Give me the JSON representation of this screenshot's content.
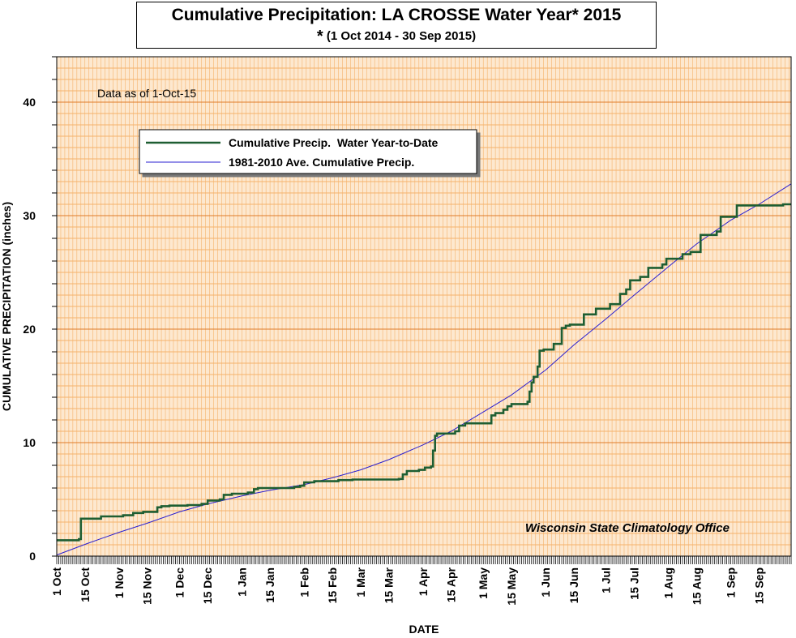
{
  "title": "Cumulative Precipitation: LA CROSSE Water Year* 2015",
  "subtitle_star": "*",
  "subtitle": "(1 Oct 2014 - 30 Sep 2015)",
  "note": "Data as of 1-Oct-15",
  "credit": "Wisconsin State Climatology Office",
  "colors": {
    "observed": "#1e5e32",
    "average": "#2a1fd0",
    "grid_major": "#e07b2a",
    "grid_minor": "#f5b26b",
    "plot_bg": "#fde8cf"
  },
  "chart_data": {
    "type": "line",
    "xlabel": "DATE",
    "ylabel": "CUMULATIVE PRECIPITATION (inches)",
    "ylim": [
      0,
      44
    ],
    "yticks": [
      0,
      10,
      20,
      30,
      40
    ],
    "xlim_days": [
      0,
      365
    ],
    "grid": true,
    "legend_position": "top-left",
    "xtick_labels": [
      {
        "label": "1 Oct",
        "day": 0
      },
      {
        "label": "15 Oct",
        "day": 14
      },
      {
        "label": "1 Nov",
        "day": 31
      },
      {
        "label": "15 Nov",
        "day": 45
      },
      {
        "label": "1 Dec",
        "day": 61
      },
      {
        "label": "15 Dec",
        "day": 75
      },
      {
        "label": "1 Jan",
        "day": 92
      },
      {
        "label": "15 Jan",
        "day": 106
      },
      {
        "label": "1 Feb",
        "day": 123
      },
      {
        "label": "15 Feb",
        "day": 137
      },
      {
        "label": "1 Mar",
        "day": 151
      },
      {
        "label": "15 Mar",
        "day": 165
      },
      {
        "label": "1 Apr",
        "day": 182
      },
      {
        "label": "15 Apr",
        "day": 196
      },
      {
        "label": "1 May",
        "day": 212
      },
      {
        "label": "15 May",
        "day": 226
      },
      {
        "label": "1 Jun",
        "day": 243
      },
      {
        "label": "15 Jun",
        "day": 257
      },
      {
        "label": "1 Jul",
        "day": 273
      },
      {
        "label": "15 Jul",
        "day": 287
      },
      {
        "label": "1 Aug",
        "day": 304
      },
      {
        "label": "15 Aug",
        "day": 318
      },
      {
        "label": "1 Sep",
        "day": 335
      },
      {
        "label": "15 Sep",
        "day": 349
      }
    ],
    "series": [
      {
        "name": "Cumulative Precip.  Water Year-to-Date",
        "step": true,
        "points": [
          [
            0,
            1.4
          ],
          [
            11,
            1.5
          ],
          [
            12,
            3.3
          ],
          [
            21,
            3.3
          ],
          [
            22,
            3.5
          ],
          [
            33,
            3.6
          ],
          [
            38,
            3.8
          ],
          [
            43,
            3.9
          ],
          [
            50,
            4.3
          ],
          [
            52,
            4.4
          ],
          [
            56,
            4.45
          ],
          [
            65,
            4.5
          ],
          [
            72,
            4.6
          ],
          [
            75,
            4.9
          ],
          [
            81,
            5.0
          ],
          [
            83,
            5.4
          ],
          [
            87,
            5.5
          ],
          [
            95,
            5.6
          ],
          [
            98,
            5.9
          ],
          [
            100,
            6.0
          ],
          [
            118,
            6.1
          ],
          [
            121,
            6.2
          ],
          [
            123,
            6.5
          ],
          [
            128,
            6.6
          ],
          [
            140,
            6.7
          ],
          [
            147,
            6.75
          ],
          [
            170,
            6.8
          ],
          [
            172,
            7.2
          ],
          [
            174,
            7.5
          ],
          [
            180,
            7.6
          ],
          [
            183,
            7.8
          ],
          [
            186,
            7.9
          ],
          [
            187,
            9.3
          ],
          [
            188,
            10.6
          ],
          [
            189,
            10.8
          ],
          [
            198,
            11.0
          ],
          [
            200,
            11.5
          ],
          [
            203,
            11.7
          ],
          [
            216,
            12.4
          ],
          [
            218,
            12.6
          ],
          [
            222,
            12.9
          ],
          [
            224,
            13.2
          ],
          [
            226,
            13.4
          ],
          [
            234,
            13.6
          ],
          [
            235,
            14.5
          ],
          [
            236,
            15.3
          ],
          [
            237,
            15.8
          ],
          [
            239,
            16.7
          ],
          [
            240,
            18.1
          ],
          [
            242,
            18.2
          ],
          [
            247,
            18.7
          ],
          [
            251,
            20.1
          ],
          [
            253,
            20.3
          ],
          [
            255,
            20.4
          ],
          [
            262,
            21.3
          ],
          [
            268,
            21.8
          ],
          [
            275,
            22.2
          ],
          [
            280,
            23.1
          ],
          [
            283,
            23.5
          ],
          [
            285,
            24.3
          ],
          [
            290,
            24.6
          ],
          [
            294,
            25.4
          ],
          [
            301,
            25.7
          ],
          [
            303,
            26.2
          ],
          [
            311,
            26.6
          ],
          [
            315,
            26.8
          ],
          [
            320,
            28.3
          ],
          [
            328,
            28.6
          ],
          [
            330,
            29.9
          ],
          [
            338,
            30.9
          ],
          [
            361,
            31.0
          ],
          [
            365,
            31.0
          ]
        ]
      },
      {
        "name": "1981-2010 Ave. Cumulative Precip.",
        "step": false,
        "points": [
          [
            0,
            0.1
          ],
          [
            15,
            1.1
          ],
          [
            31,
            2.1
          ],
          [
            45,
            2.9
          ],
          [
            61,
            3.9
          ],
          [
            75,
            4.6
          ],
          [
            92,
            5.3
          ],
          [
            106,
            5.8
          ],
          [
            123,
            6.3
          ],
          [
            137,
            6.9
          ],
          [
            151,
            7.6
          ],
          [
            165,
            8.5
          ],
          [
            182,
            9.8
          ],
          [
            196,
            11.0
          ],
          [
            212,
            12.7
          ],
          [
            226,
            14.2
          ],
          [
            243,
            16.4
          ],
          [
            257,
            18.6
          ],
          [
            273,
            20.9
          ],
          [
            287,
            23.0
          ],
          [
            304,
            25.5
          ],
          [
            318,
            27.5
          ],
          [
            335,
            29.6
          ],
          [
            349,
            31.0
          ],
          [
            365,
            32.8
          ]
        ]
      }
    ]
  }
}
